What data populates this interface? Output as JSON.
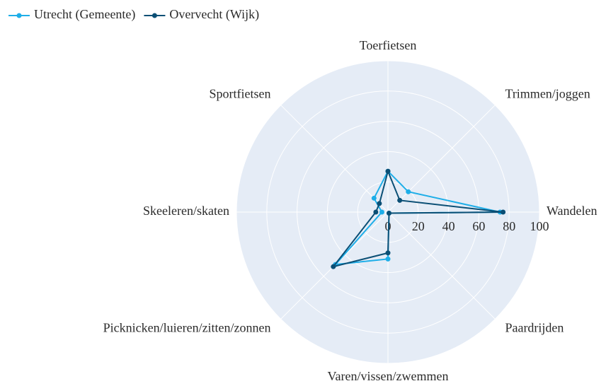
{
  "chart_data": {
    "type": "radar",
    "categories": [
      "Toerfietsen",
      "Trimmen/joggen",
      "Wandelen",
      "Paardrijden",
      "Varen/vissen/zwemmen",
      "Picknicken/luieren/zitten/zonnen",
      "Skeeleren/skaten",
      "Sportfietsen"
    ],
    "series": [
      {
        "name": "Utrecht (Gemeente)",
        "color": "#1eaee8",
        "values": [
          27,
          19,
          74,
          1,
          31,
          49,
          4,
          13
        ]
      },
      {
        "name": "Overvecht (Wijk)",
        "color": "#0b4f75",
        "values": [
          27,
          11,
          76,
          1,
          27,
          51,
          8,
          8
        ]
      }
    ],
    "rlim": [
      0,
      100
    ],
    "rticks": [
      0,
      20,
      40,
      60,
      80,
      100
    ],
    "grid": true,
    "legend": "top-left"
  }
}
